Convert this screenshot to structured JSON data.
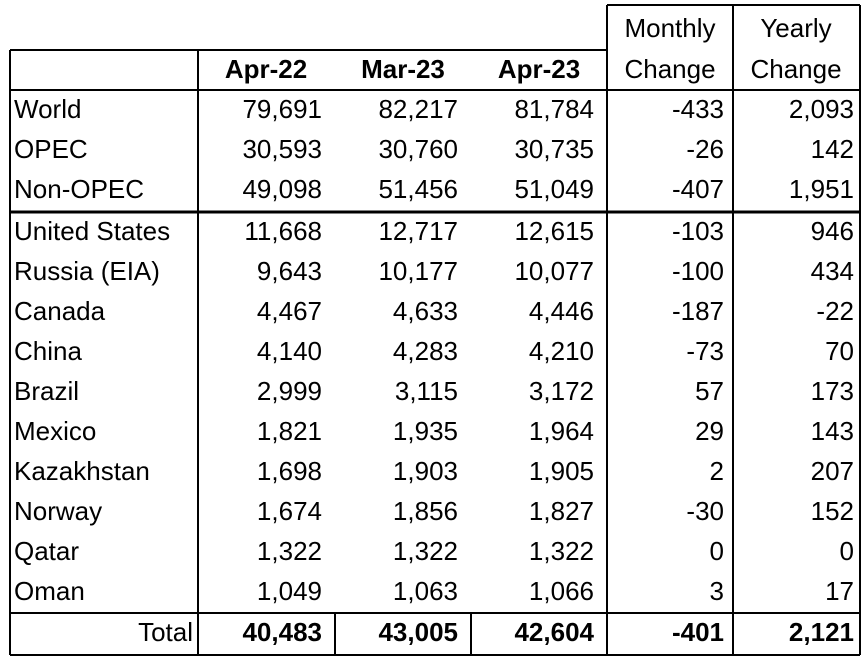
{
  "table": {
    "header_top": [
      "Monthly",
      "Yearly"
    ],
    "header": [
      "Apr-22",
      "Mar-23",
      "Apr-23",
      "Change",
      "Change"
    ],
    "rows": [
      [
        "World",
        "79,691",
        "82,217",
        "81,784",
        "-433",
        "2,093"
      ],
      [
        "OPEC",
        "30,593",
        "30,760",
        "30,735",
        "-26",
        "142"
      ],
      [
        "Non-OPEC",
        "49,098",
        "51,456",
        "51,049",
        "-407",
        "1,951"
      ],
      [
        "United States",
        "11,668",
        "12,717",
        "12,615",
        "-103",
        "946"
      ],
      [
        "Russia (EIA)",
        "9,643",
        "10,177",
        "10,077",
        "-100",
        "434"
      ],
      [
        "Canada",
        "4,467",
        "4,633",
        "4,446",
        "-187",
        "-22"
      ],
      [
        "China",
        "4,140",
        "4,283",
        "4,210",
        "-73",
        "70"
      ],
      [
        "Brazil",
        "2,999",
        "3,115",
        "3,172",
        "57",
        "173"
      ],
      [
        "Mexico",
        "1,821",
        "1,935",
        "1,964",
        "29",
        "143"
      ],
      [
        "Kazakhstan",
        "1,698",
        "1,903",
        "1,905",
        "2",
        "207"
      ],
      [
        "Norway",
        "1,674",
        "1,856",
        "1,827",
        "-30",
        "152"
      ],
      [
        "Qatar",
        "1,322",
        "1,322",
        "1,322",
        "0",
        "0"
      ],
      [
        "Oman",
        "1,049",
        "1,063",
        "1,066",
        "3",
        "17"
      ]
    ],
    "total": [
      "Total",
      "40,483",
      "43,005",
      "42,604",
      "-401",
      "2,121"
    ]
  }
}
